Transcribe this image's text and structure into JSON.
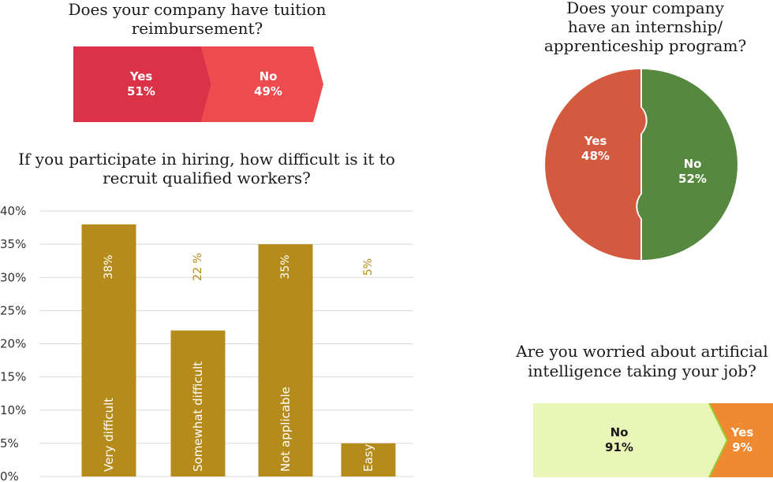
{
  "colors": {
    "tuition_yes": "#dc3248",
    "tuition_no": "#ee4b4f",
    "intern_yes": "#d45a3f",
    "intern_no": "#56893f",
    "bar_fill": "#b58c1b",
    "bar_label": "#b48a1a",
    "grid": "#d8d8d8",
    "ai_no": "#eaf5b8",
    "ai_yes": "#ef8a32",
    "ai_edge": "#9ccb2e",
    "text": "#1a1a1a"
  },
  "chart_data": [
    {
      "type": "bar",
      "title": "Does your company have tuition reimbursement?",
      "title_lines": [
        "Does your company have tuition",
        "reimbursement?"
      ],
      "categories": [
        "Yes",
        "No"
      ],
      "values": [
        51,
        49
      ],
      "value_labels": [
        "51%",
        "49%"
      ]
    },
    {
      "type": "pie",
      "title": "Does your company have an internship/ apprenticeship program?",
      "title_lines": [
        "Does your company",
        "have an internship/",
        "apprenticeship program?"
      ],
      "categories": [
        "Yes",
        "No"
      ],
      "values": [
        48,
        52
      ],
      "value_labels": [
        "48%",
        "52%"
      ]
    },
    {
      "type": "bar",
      "title": "If you participate in hiring, how difficult is it to recruit qualified workers?",
      "title_lines": [
        "If you participate in hiring, how difficult is it to",
        "recruit qualified workers?"
      ],
      "categories": [
        "Very difficult",
        "Somewhat difficult",
        "Not applicable",
        "Easy"
      ],
      "values": [
        38,
        22,
        35,
        5
      ],
      "value_labels": [
        "38%",
        "22 %",
        "35%",
        "5%"
      ],
      "ylim": [
        0,
        40
      ],
      "yticks": [
        0,
        5,
        10,
        15,
        20,
        25,
        30,
        35,
        40
      ],
      "ytick_labels": [
        "0%",
        "5%",
        "10%",
        "15%",
        "20%",
        "25%",
        "30%",
        "35%",
        "40%"
      ],
      "grid": true
    },
    {
      "type": "bar",
      "title": "Are you worried about artificial intelligence taking your job?",
      "title_lines": [
        "Are you worried about artificial",
        "intelligence taking your job?"
      ],
      "categories": [
        "No",
        "Yes"
      ],
      "values": [
        91,
        9
      ],
      "value_labels": [
        "91%",
        "9%"
      ]
    }
  ]
}
